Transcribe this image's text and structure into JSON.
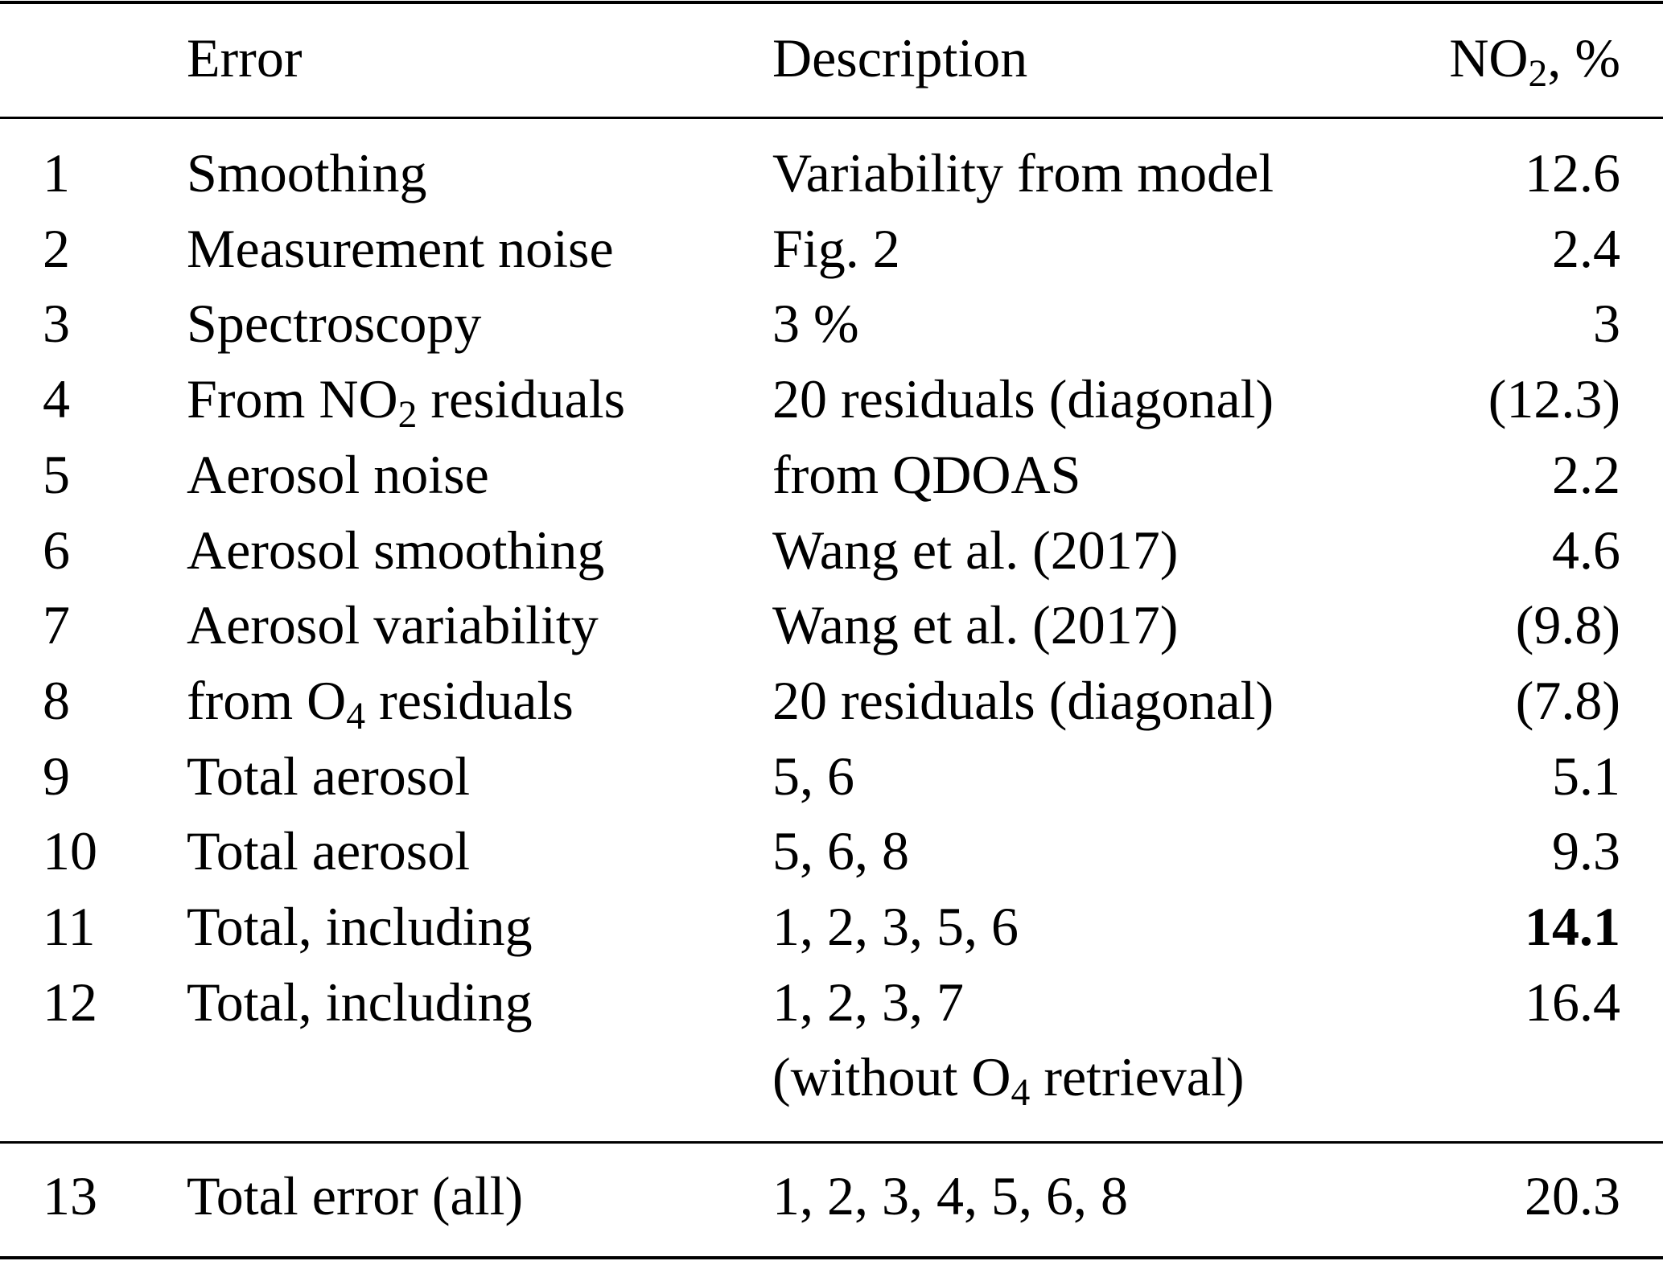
{
  "header": {
    "error": "Error",
    "description": "Description",
    "no2_prefix": "NO",
    "no2_sub": "2",
    "no2_suffix": ", %"
  },
  "rows": [
    {
      "n": "1",
      "error": "Smoothing",
      "description": "Variability from model",
      "value": "12.6"
    },
    {
      "n": "2",
      "error": "Measurement noise",
      "description": "Fig. 2",
      "value": "2.4"
    },
    {
      "n": "3",
      "error": "Spectroscopy",
      "description": "3 %",
      "value": "3"
    },
    {
      "n": "4",
      "error_prefix": "From NO",
      "error_sub": "2",
      "error_suffix": " residuals",
      "description": "20 residuals (diagonal)",
      "value": "(12.3)"
    },
    {
      "n": "5",
      "error": "Aerosol noise",
      "description": "from QDOAS",
      "value": "2.2"
    },
    {
      "n": "6",
      "error": "Aerosol smoothing",
      "description": "Wang et al. (2017)",
      "value": "4.6"
    },
    {
      "n": "7",
      "error": "Aerosol variability",
      "description": "Wang et al. (2017)",
      "value": "(9.8)"
    },
    {
      "n": "8",
      "error_prefix": "from O",
      "error_sub": "4",
      "error_suffix": " residuals",
      "description": "20 residuals (diagonal)",
      "value": "(7.8)"
    },
    {
      "n": "9",
      "error": "Total aerosol",
      "description": "5, 6",
      "value": "5.1"
    },
    {
      "n": "10",
      "error": "Total aerosol",
      "description": "5, 6, 8",
      "value": "9.3"
    },
    {
      "n": "11",
      "error": "Total, including",
      "description": "1, 2, 3, 5, 6",
      "value": "14.1",
      "bold": true
    },
    {
      "n": "12",
      "error": "Total, including",
      "description": "1, 2, 3, 7",
      "value": "16.4",
      "description2_prefix": "(without O",
      "description2_sub": "4",
      "description2_suffix": " retrieval)"
    },
    {
      "n": "13",
      "error": "Total error (all)",
      "description": "1, 2, 3, 4, 5, 6, 8",
      "value": "20.3"
    }
  ]
}
